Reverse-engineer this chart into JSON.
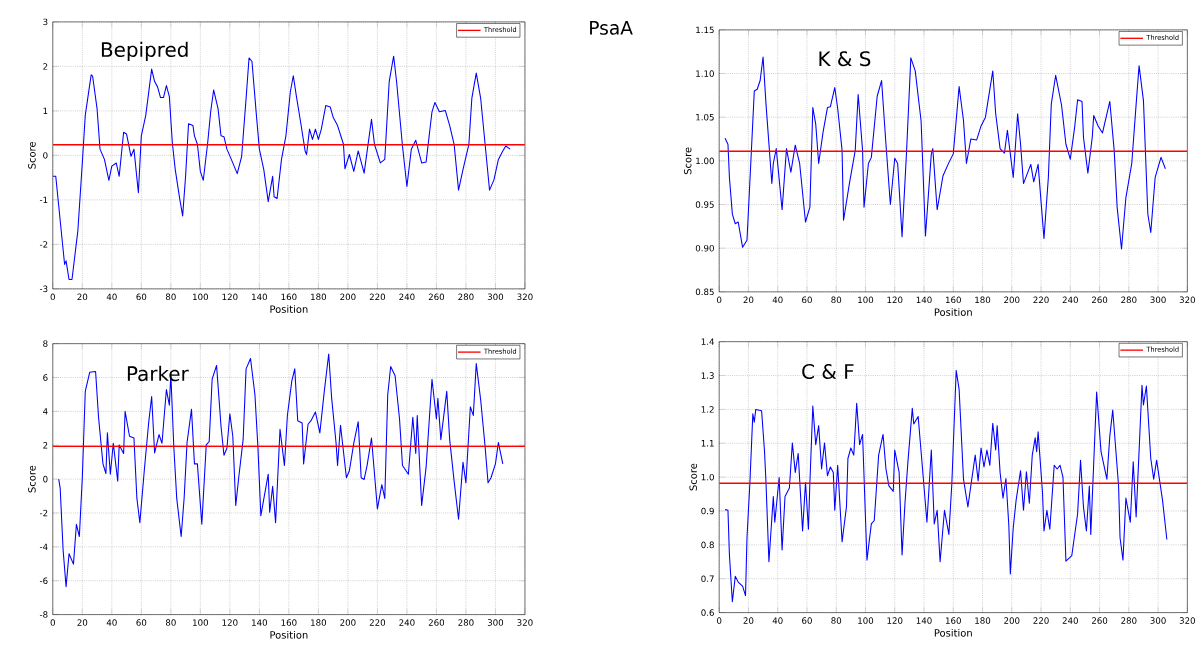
{
  "chart_data": [
    {
      "type": "line",
      "title": "Bepipred",
      "xlabel": "Position",
      "ylabel": "Score",
      "annotations": [
        "PsaA"
      ],
      "color": "#0000ff",
      "grid": true,
      "legend": "top right",
      "xlim": [
        0,
        320
      ],
      "xticks": [
        0,
        20,
        40,
        60,
        80,
        100,
        120,
        140,
        160,
        180,
        200,
        220,
        240,
        260,
        280,
        300,
        320
      ],
      "ylim": [
        -3,
        3
      ],
      "yticks": [
        -3,
        -2,
        -1,
        0,
        1,
        2,
        3
      ],
      "ref_lines": [
        {
          "axis": "y",
          "value": 0.24,
          "label": "Threshold",
          "color": "#ff0000"
        }
      ],
      "x": [
        0,
        2,
        8,
        9,
        11,
        13,
        17,
        20,
        22,
        26,
        27,
        30,
        32,
        35,
        38,
        40,
        43,
        45,
        48,
        50,
        53,
        55,
        58,
        60,
        63,
        67,
        69,
        71,
        73,
        75,
        77,
        79,
        81,
        83,
        86,
        88,
        90,
        92,
        95,
        96,
        98,
        100,
        102,
        105,
        107,
        109,
        112,
        114,
        116,
        118,
        121,
        125,
        128,
        131,
        133,
        135,
        138,
        140,
        143,
        146,
        149,
        150,
        152,
        155,
        158,
        161,
        163,
        165,
        168,
        171,
        172,
        174,
        176,
        178,
        180,
        182,
        185,
        188,
        190,
        193,
        197,
        198,
        201,
        204,
        207,
        211,
        216,
        218,
        222,
        225,
        228,
        231,
        233,
        237,
        240,
        243,
        246,
        250,
        253,
        257,
        259,
        262,
        266,
        269,
        272,
        275,
        278,
        282,
        284,
        287,
        290,
        293,
        296,
        299,
        302,
        305,
        307,
        310
      ],
      "values": [
        -0.47,
        -0.47,
        -2.45,
        -2.37,
        -2.79,
        -2.79,
        -1.69,
        -0.17,
        0.9,
        1.81,
        1.78,
        1.05,
        0.14,
        -0.09,
        -0.56,
        -0.24,
        -0.17,
        -0.47,
        0.52,
        0.48,
        -0.02,
        0.14,
        -0.84,
        0.44,
        0.9,
        1.94,
        1.66,
        1.54,
        1.3,
        1.3,
        1.57,
        1.32,
        0.29,
        -0.32,
        -0.97,
        -1.36,
        -0.47,
        0.71,
        0.67,
        0.44,
        0.25,
        -0.36,
        -0.56,
        0.29,
        0.98,
        1.47,
        1.05,
        0.44,
        0.42,
        0.14,
        -0.09,
        -0.41,
        -0.02,
        1.28,
        2.19,
        2.11,
        0.9,
        0.14,
        -0.32,
        -1.04,
        -0.47,
        -0.93,
        -0.97,
        -0.09,
        0.44,
        1.43,
        1.79,
        1.35,
        0.74,
        0.1,
        0.02,
        0.59,
        0.36,
        0.59,
        0.36,
        0.59,
        1.12,
        1.09,
        0.86,
        0.67,
        0.25,
        -0.3,
        0.02,
        -0.36,
        0.1,
        -0.4,
        0.81,
        0.25,
        -0.17,
        -0.09,
        1.66,
        2.23,
        1.66,
        0.21,
        -0.7,
        0.14,
        0.34,
        -0.17,
        -0.15,
        0.98,
        1.19,
        0.98,
        1.01,
        0.67,
        0.25,
        -0.78,
        -0.32,
        0.25,
        1.28,
        1.85,
        1.28,
        0.25,
        -0.78,
        -0.55,
        -0.09,
        0.1,
        0.21,
        0.14
      ]
    },
    {
      "type": "line",
      "title": "K & S",
      "xlabel": "Position",
      "ylabel": "Score",
      "color": "#0000ff",
      "grid": true,
      "legend": "top right",
      "xlim": [
        0,
        320
      ],
      "xticks": [
        0,
        20,
        40,
        60,
        80,
        100,
        120,
        140,
        160,
        180,
        200,
        220,
        240,
        260,
        280,
        300,
        320
      ],
      "ylim": [
        0.85,
        1.15
      ],
      "yticks": [
        0.85,
        {
          "value": 0.9,
          "label": "0.90"
        },
        0.95,
        {
          "value": 1.0,
          "label": "1.00"
        },
        1.05,
        {
          "value": 1.1,
          "label": "1.10"
        },
        1.15
      ],
      "ref_lines": [
        {
          "axis": "y",
          "value": 1.011,
          "label": "Threshold",
          "color": "#ff0000"
        }
      ],
      "x": [
        4,
        6,
        7,
        9,
        11,
        13,
        16,
        19,
        21,
        24,
        26,
        28,
        30,
        32,
        36,
        37,
        39,
        43,
        46,
        49,
        52,
        55,
        59,
        62,
        64,
        66,
        68,
        71,
        74,
        76,
        79,
        81,
        84,
        85,
        89,
        91,
        93,
        95,
        98,
        99,
        102,
        104,
        108,
        111,
        114,
        117,
        120,
        122,
        125,
        128,
        131,
        134,
        138,
        141,
        145,
        146,
        149,
        153,
        157,
        160,
        164,
        167,
        169,
        172,
        176,
        179,
        182,
        187,
        189,
        192,
        195,
        197,
        199,
        201,
        204,
        206,
        208,
        213,
        215,
        218,
        222,
        225,
        227,
        230,
        234,
        237,
        240,
        243,
        245,
        248,
        249,
        252,
        255,
        256,
        259,
        262,
        267,
        270,
        272,
        275,
        278,
        282,
        285,
        287,
        290,
        293,
        295,
        298,
        302,
        305
      ],
      "values": [
        1.026,
        1.019,
        0.981,
        0.939,
        0.928,
        0.93,
        0.901,
        0.909,
        0.977,
        1.08,
        1.082,
        1.092,
        1.119,
        1.065,
        0.974,
        0.997,
        1.014,
        0.944,
        1.014,
        0.987,
        1.018,
        0.997,
        0.93,
        0.947,
        1.061,
        1.042,
        0.997,
        1.033,
        1.061,
        1.062,
        1.084,
        1.06,
        1.012,
        0.932,
        0.974,
        0.993,
        1.012,
        1.076,
        1.012,
        0.947,
        0.997,
        1.004,
        1.074,
        1.092,
        1.019,
        0.95,
        1.003,
        0.997,
        0.913,
        1.008,
        1.118,
        1.103,
        1.046,
        0.914,
        1.008,
        1.014,
        0.944,
        0.983,
        0.998,
        1.008,
        1.085,
        1.046,
        0.997,
        1.025,
        1.024,
        1.04,
        1.05,
        1.103,
        1.054,
        1.014,
        1.009,
        1.035,
        1.008,
        0.981,
        1.054,
        1.019,
        0.974,
        0.996,
        0.976,
        0.996,
        0.911,
        0.981,
        1.065,
        1.098,
        1.064,
        1.019,
        1.002,
        1.039,
        1.07,
        1.068,
        1.027,
        0.986,
        1.027,
        1.052,
        1.04,
        1.032,
        1.068,
        1.012,
        0.947,
        0.899,
        0.958,
        0.997,
        1.065,
        1.109,
        1.069,
        0.939,
        0.918,
        0.981,
        1.004,
        0.991
      ]
    },
    {
      "type": "line",
      "title": "Parker",
      "xlabel": "Position",
      "ylabel": "Score",
      "color": "#0000ff",
      "grid": true,
      "legend": "top right",
      "xlim": [
        0,
        320
      ],
      "xticks": [
        0,
        20,
        40,
        60,
        80,
        100,
        120,
        140,
        160,
        180,
        200,
        220,
        240,
        260,
        280,
        300,
        320
      ],
      "ylim": [
        -8,
        8
      ],
      "yticks": [
        -8,
        -6,
        -4,
        -2,
        0,
        2,
        4,
        6,
        8
      ],
      "ref_lines": [
        {
          "axis": "y",
          "value": 1.94,
          "label": "Threshold",
          "color": "#ff0000"
        }
      ],
      "x": [
        4,
        5,
        7,
        9,
        11,
        14,
        16,
        18,
        20,
        22,
        25,
        29,
        31,
        34,
        36,
        37,
        39,
        41,
        44,
        45,
        48,
        49,
        52,
        55,
        57,
        59,
        62,
        65,
        67,
        69,
        72,
        74,
        77,
        79,
        80,
        82,
        84,
        87,
        89,
        91,
        94,
        96,
        98,
        101,
        104,
        106,
        108,
        111,
        114,
        116,
        118,
        120,
        122,
        124,
        126,
        129,
        131,
        134,
        137,
        139,
        141,
        146,
        147,
        149,
        151,
        154,
        157,
        159,
        162,
        164,
        166,
        169,
        170,
        173,
        175,
        178,
        181,
        184,
        187,
        189,
        192,
        193,
        195,
        199,
        201,
        204,
        207,
        209,
        211,
        213,
        216,
        220,
        223,
        225,
        227,
        229,
        232,
        235,
        237,
        241,
        244,
        246,
        247,
        250,
        253,
        257,
        260,
        261,
        263,
        267,
        269,
        272,
        275,
        278,
        280,
        283,
        285,
        287,
        290,
        293,
        295,
        297,
        300,
        302,
        305
      ],
      "values": [
        0,
        -0.53,
        -4.2,
        -6.35,
        -4.41,
        -5.02,
        -2.67,
        -3.39,
        0.08,
        5.18,
        6.31,
        6.35,
        3.65,
        0.9,
        0.33,
        2.73,
        0.29,
        2.12,
        -0.12,
        2.02,
        1.51,
        4,
        2.53,
        2.43,
        -1.14,
        -2.57,
        0.49,
        3.35,
        4.88,
        1.55,
        2.63,
        2.12,
        5.29,
        4.37,
        6.2,
        1.92,
        -1.14,
        -3.39,
        -1.14,
        2.16,
        4.12,
        0.9,
        0.9,
        -2.67,
        2.02,
        2.22,
        5.9,
        6.71,
        3.14,
        1.41,
        1.82,
        3.86,
        2.53,
        -1.55,
        0.08,
        2.33,
        6.51,
        7.12,
        4.98,
        1.92,
        -2.16,
        0.29,
        -1.96,
        -0.43,
        -2.57,
        2.94,
        0.8,
        3.76,
        5.8,
        6.51,
        3.45,
        3.31,
        0.9,
        3.24,
        3.45,
        3.96,
        2.73,
        5.18,
        7.39,
        4.78,
        2.12,
        0.8,
        3.18,
        0.08,
        0.49,
        2.12,
        3.39,
        0.08,
        -0.02,
        0.8,
        2.43,
        -1.76,
        -0.33,
        -1.14,
        4.98,
        6.65,
        6.1,
        3.55,
        0.8,
        0.29,
        3.65,
        1.51,
        3.76,
        -1.55,
        0.69,
        5.9,
        3.55,
        4.78,
        2.33,
        5.18,
        2.33,
        -0.12,
        -2.37,
        1,
        -0.22,
        4.27,
        3.76,
        6.82,
        4.67,
        1.92,
        -0.22,
        0.08,
        0.9,
        2.16,
        0.9
      ]
    },
    {
      "type": "line",
      "title": "C & F",
      "xlabel": "Position",
      "ylabel": "Score",
      "color": "#0000ff",
      "grid": true,
      "legend": "top right",
      "xlim": [
        0,
        320
      ],
      "xticks": [
        0,
        20,
        40,
        60,
        80,
        100,
        120,
        140,
        160,
        180,
        200,
        220,
        240,
        260,
        280,
        300,
        320
      ],
      "ylim": [
        0.6,
        1.4
      ],
      "yticks": [
        0.6,
        0.7,
        0.8,
        0.9,
        {
          "value": 1.0,
          "label": "1.0"
        },
        1.1,
        1.2,
        1.3,
        1.4
      ],
      "ref_lines": [
        {
          "axis": "y",
          "value": 0.982,
          "label": "Threshold",
          "color": "#ff0000"
        }
      ],
      "x": [
        4,
        6,
        7,
        9,
        11,
        13,
        16,
        18,
        19,
        21,
        23,
        24,
        25,
        29,
        31,
        32,
        34,
        37,
        38,
        41,
        43,
        45,
        48,
        50,
        52,
        54,
        57,
        59,
        61,
        62,
        64,
        66,
        68,
        70,
        72,
        74,
        76,
        78,
        79,
        81,
        84,
        87,
        88,
        90,
        92,
        94,
        96,
        98,
        101,
        104,
        106,
        109,
        112,
        114,
        116,
        119,
        120,
        123,
        125,
        127,
        129,
        132,
        133,
        136,
        139,
        142,
        145,
        147,
        149,
        151,
        154,
        157,
        159,
        162,
        164,
        167,
        170,
        172,
        175,
        177,
        179,
        181,
        183,
        185,
        187,
        189,
        190,
        192,
        194,
        196,
        198,
        199,
        201,
        203,
        206,
        208,
        210,
        212,
        214,
        216,
        217,
        218,
        221,
        222,
        224,
        226,
        229,
        231,
        233,
        235,
        237,
        241,
        245,
        247,
        249,
        251,
        253,
        254,
        258,
        261,
        265,
        267,
        269,
        271,
        273,
        274,
        276,
        278,
        281,
        283,
        285,
        289,
        290,
        292,
        295,
        297,
        299,
        303,
        306
      ],
      "values": [
        0.904,
        0.902,
        0.77,
        0.632,
        0.707,
        0.69,
        0.678,
        0.65,
        0.821,
        0.984,
        1.187,
        1.162,
        1.2,
        1.196,
        1.075,
        0.984,
        0.75,
        0.943,
        0.867,
        0.999,
        0.785,
        0.943,
        0.968,
        1.101,
        1.014,
        1.07,
        0.841,
        0.984,
        0.846,
        0.984,
        1.21,
        1.096,
        1.152,
        1.024,
        1.101,
        1.004,
        1.03,
        1.014,
        0.902,
        1.035,
        0.809,
        0.912,
        1.055,
        1.086,
        1.065,
        1.218,
        1.096,
        1.126,
        0.755,
        0.862,
        0.872,
        1.065,
        1.126,
        1.024,
        0.974,
        0.958,
        1.08,
        1.014,
        0.77,
        0.923,
        1.045,
        1.203,
        1.157,
        1.179,
        1.024,
        0.867,
        1.08,
        0.862,
        0.902,
        0.75,
        0.902,
        0.831,
        0.979,
        1.315,
        1.259,
        0.994,
        0.912,
        0.974,
        1.065,
        0.989,
        1.086,
        1.03,
        1.08,
        1.035,
        1.159,
        1.08,
        1.152,
        1.014,
        0.938,
        0.996,
        0.856,
        0.714,
        0.851,
        0.933,
        1.019,
        0.902,
        1.016,
        0.923,
        1.065,
        1.116,
        1.075,
        1.134,
        0.953,
        0.841,
        0.902,
        0.846,
        1.035,
        1.024,
        1.035,
        0.999,
        0.752,
        0.768,
        0.892,
        1.05,
        0.912,
        0.841,
        0.974,
        0.831,
        1.251,
        1.075,
        0.994,
        1.121,
        1.198,
        1.086,
        0.974,
        0.821,
        0.755,
        0.938,
        0.867,
        1.045,
        0.882,
        1.271,
        1.213,
        1.269,
        1.055,
        0.994,
        1.05,
        0.933,
        0.816
      ]
    }
  ]
}
